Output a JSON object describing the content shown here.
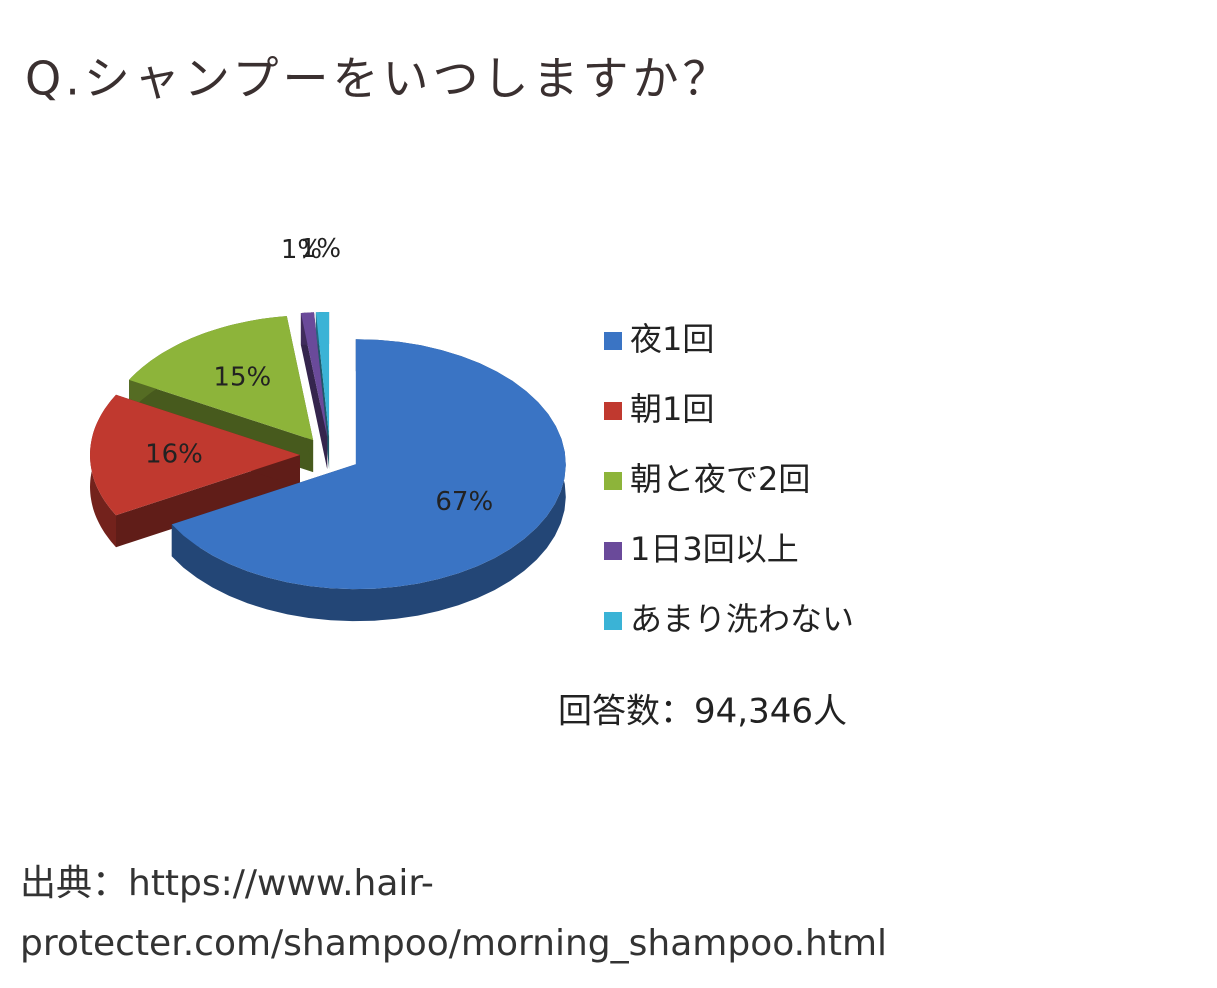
{
  "chart_data": {
    "type": "pie",
    "title": "Q.シャンプーをいつしますか？",
    "categories": [
      "夜1回",
      "朝1回",
      "朝と夜で2回",
      "1日3回以上",
      "あまり洗わない"
    ],
    "values": [
      67,
      16,
      15,
      1,
      1
    ],
    "value_labels": [
      "67%",
      "16%",
      "15%",
      "1%",
      "1%"
    ],
    "colors": [
      "#3a74c4",
      "#c0392f",
      "#8db43a",
      "#6a4a9a",
      "#3ab3d6"
    ],
    "legend": "right",
    "note": "回答数：94,346人"
  },
  "source": [
    "出典：https://www.hair-",
    "protecter.com/shampoo/morning_shampoo.html"
  ]
}
